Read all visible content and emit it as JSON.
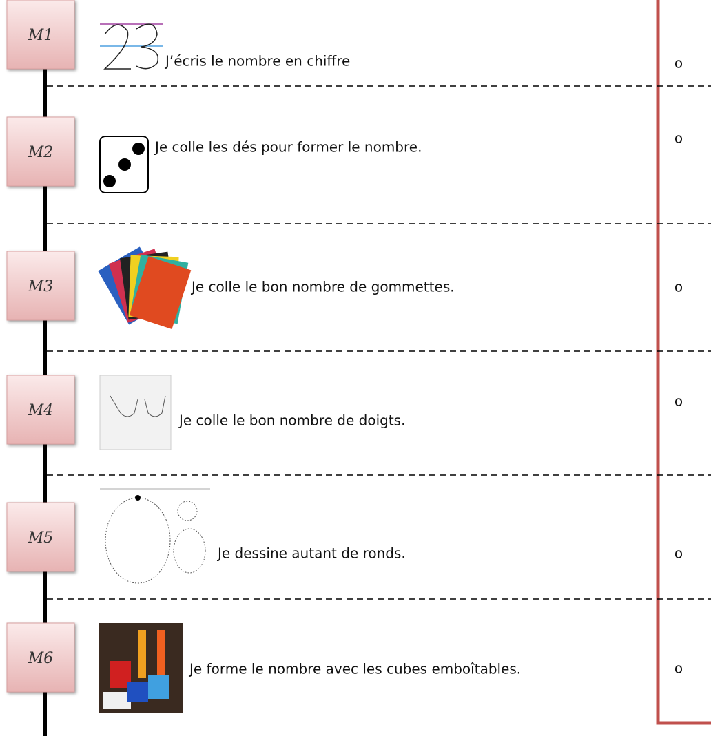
{
  "rows": [
    {
      "label": "M1",
      "text": "J’écris le nombre en chiffre",
      "check": "o"
    },
    {
      "label": "M2",
      "text": "Je colle les dés pour former le nombre.",
      "check": "o"
    },
    {
      "label": "M3",
      "text": "Je colle le bon nombre de gommettes.",
      "check": "o"
    },
    {
      "label": "M4",
      "text": "Je colle le bon nombre de doigts.",
      "check": "o"
    },
    {
      "label": "M5",
      "text": "Je dessine autant de ronds.",
      "check": "o"
    },
    {
      "label": "M6",
      "text": "Je forme le nombre avec les cubes emboîtables.",
      "check": "o"
    }
  ]
}
